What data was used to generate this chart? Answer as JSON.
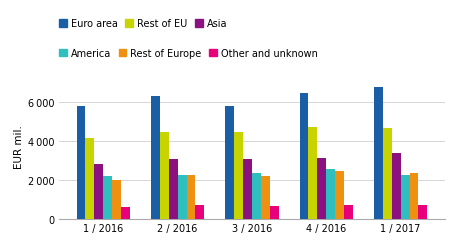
{
  "groups": [
    "1 / 2016",
    "2 / 2016",
    "3 / 2016",
    "4 / 2016",
    "1 / 2017"
  ],
  "series": {
    "Euro area": [
      5800,
      6300,
      5780,
      6450,
      6750
    ],
    "Rest of EU": [
      4150,
      4450,
      4430,
      4700,
      4680
    ],
    "Asia": [
      2820,
      3080,
      3080,
      3130,
      3370
    ],
    "America": [
      2180,
      2280,
      2350,
      2580,
      2270
    ],
    "Rest of Europe": [
      2020,
      2230,
      2190,
      2450,
      2370
    ],
    "Other and unknown": [
      620,
      700,
      650,
      700,
      700
    ]
  },
  "colors": {
    "Euro area": "#1a5fa6",
    "Rest of EU": "#c8d400",
    "Asia": "#8b1080",
    "America": "#2fbfbf",
    "Rest of Europe": "#f09010",
    "Other and unknown": "#e8007a"
  },
  "ylabel": "EUR mil.",
  "ylim": [
    0,
    7500
  ],
  "yticks": [
    0,
    2000,
    4000,
    6000
  ],
  "background_color": "#ffffff",
  "grid_color": "#d0d0d0"
}
